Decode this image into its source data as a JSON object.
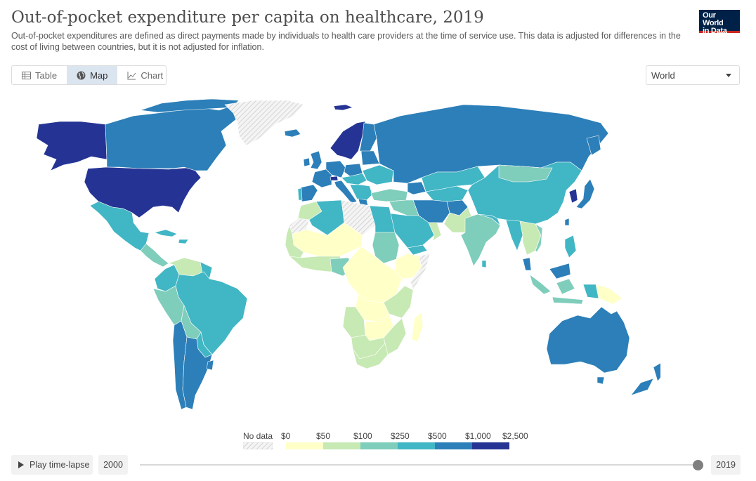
{
  "header": {
    "title": "Out-of-pocket expenditure per capita on healthcare, 2019",
    "subtitle": "Out-of-pocket expenditures are defined as direct payments made by individuals to health care providers at the time of service use. This data is adjusted for differences in the cost of living between countries, but it is not adjusted for inflation.",
    "logo_line1": "Our World",
    "logo_line2": "in Data"
  },
  "tabs": [
    {
      "label": "Table",
      "icon": "table-icon",
      "active": false
    },
    {
      "label": "Map",
      "icon": "globe-icon",
      "active": true
    },
    {
      "label": "Chart",
      "icon": "line-chart-icon",
      "active": false
    }
  ],
  "region_selector": {
    "value": "World"
  },
  "legend": {
    "no_data_label": "No data",
    "bins": [
      "$0",
      "$50",
      "$100",
      "$250",
      "$500",
      "$1,000",
      "$2,500"
    ],
    "colors": [
      "#ffffc8",
      "#c7e9b4",
      "#7fcdbb",
      "#41b6c4",
      "#2c7fb8",
      "#253494"
    ],
    "no_data_pattern": "hatched-gray"
  },
  "colors": {
    "ocean": "#ffffff",
    "no_data": "#e6e6e6"
  },
  "timeline": {
    "play_label": "Play time-lapse",
    "start_year": "2000",
    "end_year": "2019",
    "position": 1.0
  }
}
